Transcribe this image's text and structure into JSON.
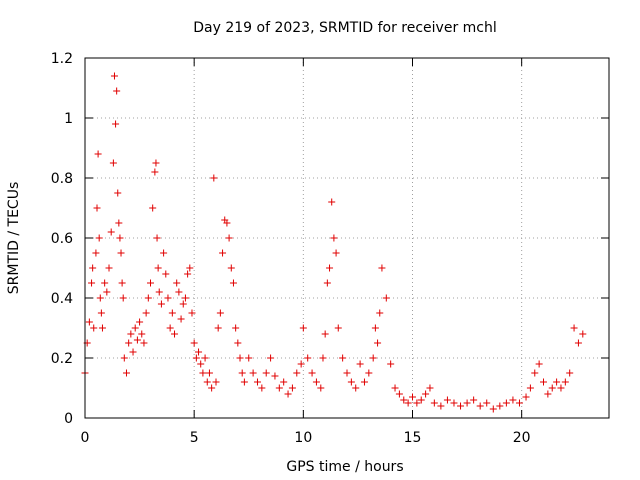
{
  "chart_data": {
    "type": "scatter",
    "title": "Day 219 of 2023, SRMTID for receiver mchl",
    "xlabel": "GPS time / hours",
    "ylabel": "SRMTID / TECUs",
    "xlim": [
      0,
      24
    ],
    "ylim": [
      0,
      1.2
    ],
    "xticks": [
      0,
      5,
      10,
      15,
      20
    ],
    "xtick_labels": [
      "0",
      "5",
      "10",
      "15",
      "20"
    ],
    "yticks": [
      0,
      0.2,
      0.4,
      0.6,
      0.8,
      1.0,
      1.2
    ],
    "ytick_labels": [
      "0",
      "0.2",
      "0.4",
      "0.6",
      "0.8",
      "1",
      "1.2"
    ],
    "grid": true,
    "marker": "+",
    "marker_color": "#e00000",
    "series": [
      {
        "name": "SRMTID",
        "color": "#e00000",
        "x": [
          0.0,
          0.1,
          0.2,
          0.3,
          0.35,
          0.4,
          0.5,
          0.55,
          0.6,
          0.65,
          0.7,
          0.75,
          0.8,
          0.9,
          1.0,
          1.1,
          1.2,
          1.3,
          1.35,
          1.4,
          1.45,
          1.5,
          1.55,
          1.6,
          1.65,
          1.7,
          1.75,
          1.8,
          1.9,
          2.0,
          2.1,
          2.2,
          2.3,
          2.4,
          2.5,
          2.6,
          2.7,
          2.8,
          2.9,
          3.0,
          3.1,
          3.2,
          3.25,
          3.3,
          3.35,
          3.4,
          3.5,
          3.6,
          3.7,
          3.8,
          3.9,
          4.0,
          4.1,
          4.2,
          4.3,
          4.4,
          4.5,
          4.6,
          4.7,
          4.8,
          4.9,
          5.0,
          5.1,
          5.2,
          5.3,
          5.4,
          5.5,
          5.6,
          5.7,
          5.8,
          5.9,
          6.0,
          6.1,
          6.2,
          6.3,
          6.4,
          6.5,
          6.6,
          6.7,
          6.8,
          6.9,
          7.0,
          7.1,
          7.2,
          7.3,
          7.5,
          7.7,
          7.9,
          8.1,
          8.3,
          8.5,
          8.7,
          8.9,
          9.1,
          9.3,
          9.5,
          9.7,
          9.9,
          10.0,
          10.2,
          10.4,
          10.6,
          10.8,
          10.9,
          11.0,
          11.1,
          11.2,
          11.3,
          11.4,
          11.5,
          11.6,
          11.8,
          12.0,
          12.2,
          12.4,
          12.6,
          12.8,
          13.0,
          13.2,
          13.3,
          13.4,
          13.5,
          13.6,
          13.8,
          14.0,
          14.2,
          14.4,
          14.6,
          14.8,
          15.0,
          15.2,
          15.4,
          15.6,
          15.8,
          16.0,
          16.3,
          16.6,
          16.9,
          17.2,
          17.5,
          17.8,
          18.1,
          18.4,
          18.7,
          19.0,
          19.3,
          19.6,
          19.9,
          20.2,
          20.4,
          20.6,
          20.8,
          21.0,
          21.2,
          21.4,
          21.6,
          21.8,
          22.0,
          22.2,
          22.4,
          22.6,
          22.8
        ],
        "y": [
          0.15,
          0.25,
          0.32,
          0.45,
          0.5,
          0.3,
          0.55,
          0.7,
          0.88,
          0.6,
          0.4,
          0.35,
          0.3,
          0.45,
          0.42,
          0.5,
          0.62,
          0.85,
          1.14,
          0.98,
          1.09,
          0.75,
          0.65,
          0.6,
          0.55,
          0.45,
          0.4,
          0.2,
          0.15,
          0.25,
          0.28,
          0.22,
          0.3,
          0.26,
          0.32,
          0.28,
          0.25,
          0.35,
          0.4,
          0.45,
          0.7,
          0.82,
          0.85,
          0.6,
          0.5,
          0.42,
          0.38,
          0.55,
          0.48,
          0.4,
          0.3,
          0.35,
          0.28,
          0.45,
          0.42,
          0.33,
          0.38,
          0.4,
          0.48,
          0.5,
          0.35,
          0.25,
          0.2,
          0.22,
          0.18,
          0.15,
          0.2,
          0.12,
          0.15,
          0.1,
          0.8,
          0.12,
          0.3,
          0.35,
          0.55,
          0.66,
          0.65,
          0.6,
          0.5,
          0.45,
          0.3,
          0.25,
          0.2,
          0.15,
          0.12,
          0.2,
          0.15,
          0.12,
          0.1,
          0.15,
          0.2,
          0.14,
          0.1,
          0.12,
          0.08,
          0.1,
          0.15,
          0.18,
          0.3,
          0.2,
          0.15,
          0.12,
          0.1,
          0.2,
          0.28,
          0.45,
          0.5,
          0.72,
          0.6,
          0.55,
          0.3,
          0.2,
          0.15,
          0.12,
          0.1,
          0.18,
          0.12,
          0.15,
          0.2,
          0.3,
          0.25,
          0.35,
          0.5,
          0.4,
          0.18,
          0.1,
          0.08,
          0.06,
          0.05,
          0.07,
          0.05,
          0.06,
          0.08,
          0.1,
          0.05,
          0.04,
          0.06,
          0.05,
          0.04,
          0.05,
          0.06,
          0.04,
          0.05,
          0.03,
          0.04,
          0.05,
          0.06,
          0.05,
          0.07,
          0.1,
          0.15,
          0.18,
          0.12,
          0.08,
          0.1,
          0.12,
          0.1,
          0.12,
          0.15,
          0.3,
          0.25,
          0.28
        ]
      }
    ]
  }
}
